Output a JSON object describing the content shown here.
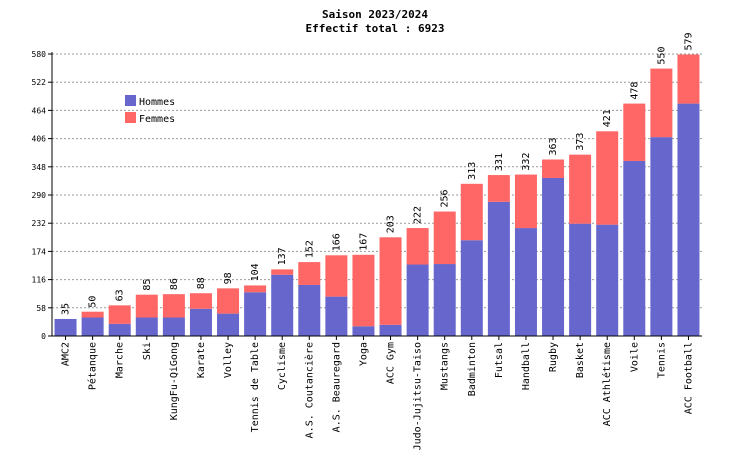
{
  "chart_data": {
    "type": "bar",
    "stacked": true,
    "title": "Saison 2023/2024",
    "subtitle": "Effectif total : 6923",
    "xlabel": "",
    "ylabel": "",
    "categories": [
      "AMC2",
      "Pétanque",
      "Marche",
      "Ski",
      "KungFu-QiGong",
      "Karate",
      "Volley",
      "Tennis de Table",
      "Cyclisme",
      "A.S. Coutancière",
      "A.S. Beauregard",
      "Yoga",
      "ACC Gym",
      "Judo-Jujitsu-Taiso",
      "Mustangs",
      "Badminton",
      "Futsal",
      "Handball",
      "Rugby",
      "Basket",
      "ACC Athlétisme",
      "Voile",
      "Tennis",
      "ACC Football"
    ],
    "totals": [
      35,
      50,
      63,
      85,
      86,
      88,
      98,
      104,
      137,
      152,
      166,
      167,
      203,
      222,
      256,
      313,
      331,
      332,
      363,
      373,
      421,
      478,
      550,
      579
    ],
    "series": [
      {
        "name": "Hommes",
        "color": "#6666cc",
        "values": [
          35,
          38,
          25,
          38,
          38,
          56,
          46,
          90,
          126,
          105,
          81,
          20,
          23,
          147,
          148,
          197,
          276,
          222,
          325,
          231,
          229,
          360,
          409,
          478
        ]
      },
      {
        "name": "Femmes",
        "color": "#ff6666",
        "values": [
          0,
          12,
          38,
          47,
          48,
          32,
          52,
          14,
          11,
          47,
          85,
          147,
          180,
          75,
          108,
          116,
          55,
          110,
          38,
          142,
          192,
          118,
          141,
          101
        ]
      }
    ],
    "yticks": [
      0,
      58,
      116,
      174,
      232,
      290,
      348,
      406,
      464,
      522,
      580
    ],
    "ylim": [
      0,
      580
    ],
    "grid": true,
    "legend_position": "top-left"
  }
}
